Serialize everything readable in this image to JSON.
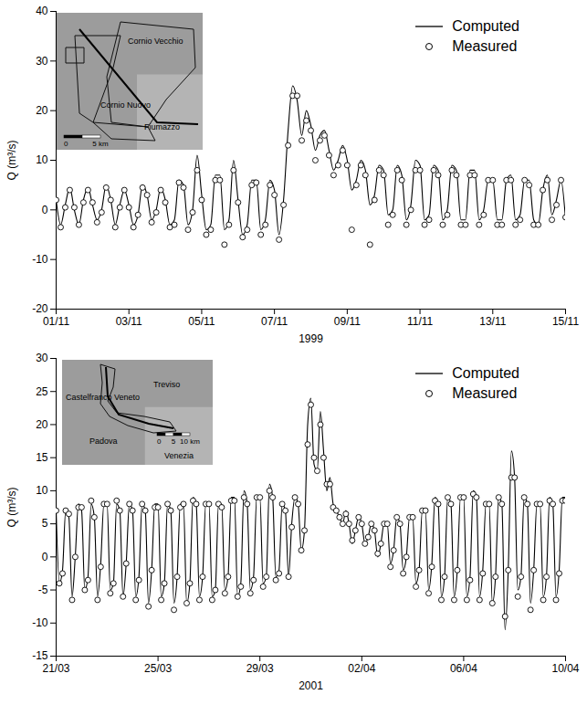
{
  "chart_data": [
    {
      "type": "line",
      "xlabel": "1999",
      "ylabel": "Q (m³/s)",
      "xlim": [
        0,
        14
      ],
      "xticks": [
        {
          "value": 0,
          "label": "01/11"
        },
        {
          "value": 2,
          "label": "03/11"
        },
        {
          "value": 4,
          "label": "05/11"
        },
        {
          "value": 6,
          "label": "07/11"
        },
        {
          "value": 8,
          "label": "09/11"
        },
        {
          "value": 10,
          "label": "11/11"
        },
        {
          "value": 12,
          "label": "13/11"
        },
        {
          "value": 14,
          "label": "15/11"
        }
      ],
      "ylim": [
        -20,
        40
      ],
      "yticks": [
        -20,
        -10,
        0,
        10,
        20,
        30,
        40
      ],
      "grid": false,
      "legend": "top-right",
      "inset": {
        "labels": [
          "Cornio Vecchio",
          "Cornio Nuovo",
          "Fiumazzo"
        ],
        "scale_labels": [
          "0",
          "5 km"
        ]
      },
      "x": [
        0,
        0.125,
        0.25,
        0.375,
        0.5,
        0.625,
        0.75,
        0.875,
        1,
        1.125,
        1.25,
        1.375,
        1.5,
        1.625,
        1.75,
        1.875,
        2,
        2.125,
        2.25,
        2.375,
        2.5,
        2.625,
        2.75,
        2.875,
        3,
        3.125,
        3.25,
        3.375,
        3.5,
        3.625,
        3.75,
        3.875,
        4,
        4.125,
        4.25,
        4.375,
        4.5,
        4.625,
        4.75,
        4.875,
        5,
        5.125,
        5.25,
        5.375,
        5.5,
        5.625,
        5.75,
        5.875,
        6,
        6.125,
        6.25,
        6.375,
        6.5,
        6.625,
        6.75,
        6.875,
        7,
        7.125,
        7.25,
        7.375,
        7.5,
        7.625,
        7.75,
        7.875,
        8,
        8.125,
        8.25,
        8.375,
        8.5,
        8.625,
        8.75,
        8.875,
        9,
        9.125,
        9.25,
        9.375,
        9.5,
        9.625,
        9.75,
        9.875,
        10,
        10.125,
        10.25,
        10.375,
        10.5,
        10.625,
        10.75,
        10.875,
        11,
        11.125,
        11.25,
        11.375,
        11.5,
        11.625,
        11.75,
        11.875,
        12,
        12.125,
        12.25,
        12.375,
        12.5,
        12.625,
        12.75,
        12.875,
        13,
        13.125,
        13.25,
        13.375,
        13.5,
        13.625,
        13.75,
        13.875,
        14
      ],
      "series": [
        {
          "name": "Computed",
          "type": "line",
          "line_style": "solid",
          "color": "#000000",
          "values": [
            2,
            -3,
            1,
            4.5,
            0,
            -3,
            2,
            4.5,
            1,
            -2,
            0,
            5,
            2,
            -3,
            1,
            4,
            1,
            -3,
            -1,
            5,
            3,
            -2,
            0,
            4.5,
            2,
            -3,
            -2,
            6,
            5,
            -3,
            0,
            11,
            3,
            -4,
            -3,
            7,
            7,
            -4,
            -2,
            10,
            2,
            -5,
            -3,
            6,
            6,
            -4,
            -2,
            6,
            4,
            -5,
            2,
            16,
            25,
            22,
            15,
            20,
            17,
            12,
            15,
            16,
            12,
            8,
            10,
            13,
            10,
            4,
            6,
            10,
            8,
            1,
            3,
            9,
            8,
            -1,
            0,
            9,
            7,
            -2,
            1,
            10,
            9,
            -2,
            -1,
            9,
            8,
            -2,
            0,
            9,
            8,
            -2,
            -2,
            8,
            8,
            -2,
            0,
            6,
            6,
            -2,
            -2,
            6,
            7,
            -2,
            -1,
            6,
            6,
            -2,
            -3,
            4,
            7,
            -1,
            2,
            6,
            -2
          ]
        },
        {
          "name": "Measured",
          "type": "scatter",
          "marker": "circle",
          "color": "#000000",
          "values": [
            2,
            -3.5,
            0.5,
            4,
            0.5,
            -3,
            1.5,
            4,
            1.5,
            -2.5,
            -0.5,
            4.5,
            2,
            -3.5,
            0.5,
            4,
            0.5,
            -3.5,
            -1,
            4.5,
            3,
            -2.5,
            -0.5,
            4,
            1.5,
            -3.5,
            -3,
            5.5,
            4.5,
            -4,
            -0.5,
            8,
            2,
            -5,
            -4,
            6,
            6,
            -7,
            -3,
            8,
            1.5,
            -5.5,
            -4,
            5,
            5.5,
            -5,
            -3,
            5,
            3,
            -6,
            1,
            13,
            23,
            23,
            14,
            18,
            16,
            10,
            14,
            15,
            11,
            7,
            9,
            12,
            9,
            -4,
            5,
            9,
            7,
            -7,
            2,
            8,
            7,
            -3,
            -1,
            8,
            6,
            -3,
            0,
            8,
            8,
            -3,
            -2,
            8,
            7,
            -3,
            -1,
            8,
            7,
            -3,
            -3,
            7,
            7,
            -3,
            -1,
            6,
            6,
            -3,
            -3,
            6,
            6,
            -3,
            -2,
            6,
            5,
            -3,
            -3,
            4,
            6,
            -2,
            1,
            6,
            -1.5
          ]
        }
      ]
    },
    {
      "type": "line",
      "xlabel": "2001",
      "ylabel": "Q (m³/s)",
      "xlim": [
        0,
        20
      ],
      "xticks": [
        {
          "value": 0,
          "label": "21/03"
        },
        {
          "value": 4,
          "label": "25/03"
        },
        {
          "value": 8,
          "label": "29/03"
        },
        {
          "value": 12,
          "label": "02/04"
        },
        {
          "value": 16,
          "label": "06/04"
        },
        {
          "value": 20,
          "label": "10/04"
        }
      ],
      "ylim": [
        -15,
        30
      ],
      "yticks": [
        -15,
        -10,
        -5,
        0,
        5,
        10,
        15,
        20,
        25,
        30
      ],
      "grid": false,
      "legend": "top-right",
      "inset": {
        "labels": [
          "Castelfranco Veneto",
          "Treviso",
          "Padova",
          "Venezia"
        ],
        "scale_labels": [
          "0",
          "5",
          "10 km"
        ]
      },
      "x": [
        0,
        0.125,
        0.25,
        0.375,
        0.5,
        0.625,
        0.75,
        0.875,
        1,
        1.125,
        1.25,
        1.375,
        1.5,
        1.625,
        1.75,
        1.875,
        2,
        2.125,
        2.25,
        2.375,
        2.5,
        2.625,
        2.75,
        2.875,
        3,
        3.125,
        3.25,
        3.375,
        3.5,
        3.625,
        3.75,
        3.875,
        4,
        4.125,
        4.25,
        4.375,
        4.5,
        4.625,
        4.75,
        4.875,
        5,
        5.125,
        5.25,
        5.375,
        5.5,
        5.625,
        5.75,
        5.875,
        6,
        6.125,
        6.25,
        6.375,
        6.5,
        6.625,
        6.75,
        6.875,
        7,
        7.125,
        7.25,
        7.375,
        7.5,
        7.625,
        7.75,
        7.875,
        8,
        8.125,
        8.25,
        8.375,
        8.5,
        8.625,
        8.75,
        8.875,
        9,
        9.125,
        9.25,
        9.375,
        9.5,
        9.625,
        9.75,
        9.875,
        10,
        10.125,
        10.25,
        10.375,
        10.5,
        10.625,
        10.75,
        10.875,
        11,
        11.125,
        11.25,
        11.375,
        11.5,
        11.625,
        11.75,
        11.875,
        12,
        12.125,
        12.25,
        12.375,
        12.5,
        12.625,
        12.75,
        12.875,
        13,
        13.125,
        13.25,
        13.375,
        13.5,
        13.625,
        13.75,
        13.875,
        14,
        14.125,
        14.25,
        14.375,
        14.5,
        14.625,
        14.75,
        14.875,
        15,
        15.125,
        15.25,
        15.375,
        15.5,
        15.625,
        15.75,
        15.875,
        16,
        16.125,
        16.25,
        16.375,
        16.5,
        16.625,
        16.75,
        16.875,
        17,
        17.125,
        17.25,
        17.375,
        17.5,
        17.625,
        17.75,
        17.875,
        18,
        18.125,
        18.25,
        18.375,
        18.5,
        18.625,
        18.75,
        18.875,
        19,
        19.125,
        19.25,
        19.375,
        19.5,
        19.625,
        19.75,
        19.875,
        20
      ],
      "series": [
        {
          "name": "Computed",
          "type": "line",
          "line_style": "solid",
          "color": "#000000",
          "values": [
            7,
            -4,
            -2,
            7,
            6,
            -6,
            0,
            8,
            7,
            -5,
            -3,
            8,
            6,
            -6,
            -1,
            8,
            8,
            -5,
            -4,
            8,
            7,
            -6,
            -1,
            8,
            7,
            -6,
            -3,
            8,
            7,
            -7,
            -2,
            8,
            8,
            -6,
            -4,
            8,
            7,
            -7,
            -3,
            8,
            8,
            -7,
            -4,
            9,
            8,
            -6,
            -3,
            8,
            8,
            -6,
            -5,
            8,
            8,
            -5,
            -3,
            9,
            9,
            -6,
            -4,
            10,
            8,
            -5,
            -3,
            9,
            9,
            -4,
            -3,
            11,
            9,
            -3,
            -2,
            8,
            7,
            -3,
            5,
            9,
            8,
            1,
            4,
            20,
            24,
            14,
            13,
            22,
            16,
            10,
            12,
            8,
            7,
            6,
            5,
            7,
            5,
            2,
            4,
            6,
            5,
            2,
            3,
            5,
            4,
            0,
            2,
            5,
            5,
            -1,
            1,
            6,
            5,
            -2,
            0,
            6,
            6,
            -4,
            -2,
            7,
            7,
            -5,
            -1,
            9,
            8,
            -6,
            -3,
            9,
            8,
            -6,
            -2,
            9,
            9,
            -6,
            -3,
            10,
            9,
            -6,
            -2,
            8,
            8,
            -7,
            -3,
            9,
            8,
            -11,
            -2,
            16,
            12,
            -5,
            -3,
            9,
            8,
            -7,
            -2,
            8,
            8,
            -6,
            -3,
            9,
            8,
            -6,
            -2,
            9,
            9
          ]
        },
        {
          "name": "Measured",
          "type": "scatter",
          "marker": "circle",
          "color": "#000000",
          "values": [
            7,
            -4,
            -2.5,
            7,
            6.5,
            -6.5,
            0,
            7.5,
            7.5,
            -5,
            -3.5,
            8.5,
            6,
            -6.5,
            -1.5,
            8,
            8,
            -5.5,
            -4,
            8.5,
            7,
            -6,
            -1,
            8,
            7,
            -6.5,
            -3.5,
            8,
            7,
            -7.5,
            -2,
            7.5,
            7.5,
            -6.5,
            -4,
            8,
            7,
            -8,
            -3,
            7.5,
            8,
            -7,
            -4,
            8.5,
            8,
            -6.5,
            -3,
            8,
            8,
            -6.5,
            -5,
            8,
            7.5,
            -5.5,
            -3,
            8.5,
            8.5,
            -6,
            -4.5,
            9,
            8,
            -5.5,
            -3.5,
            9,
            9,
            -4.5,
            -3,
            10,
            9,
            -3.5,
            -2.5,
            8,
            7,
            -3,
            4.5,
            9,
            8,
            1,
            4,
            17,
            23,
            15,
            13,
            20,
            15,
            11,
            11,
            7.5,
            7,
            6,
            5,
            6.5,
            5,
            2.5,
            4,
            6,
            5,
            2,
            3,
            5,
            4,
            0.5,
            2,
            5,
            5,
            -1.5,
            1,
            6,
            5,
            -2.5,
            0,
            6,
            6,
            -4.5,
            -2,
            7,
            7,
            -5.5,
            -1.5,
            8.5,
            8,
            -6.5,
            -3,
            9,
            8,
            -6.5,
            -2,
            9,
            9,
            -6.5,
            -3.5,
            9.5,
            9,
            -6.5,
            -2.5,
            8,
            8,
            -7,
            -3,
            9,
            8,
            -9,
            -2,
            12,
            12,
            -6,
            -3,
            9,
            8,
            -8,
            -2,
            8,
            8,
            -6.5,
            -3,
            8.5,
            8,
            -6.5,
            -2.5,
            8.5,
            8.5
          ]
        }
      ]
    }
  ]
}
